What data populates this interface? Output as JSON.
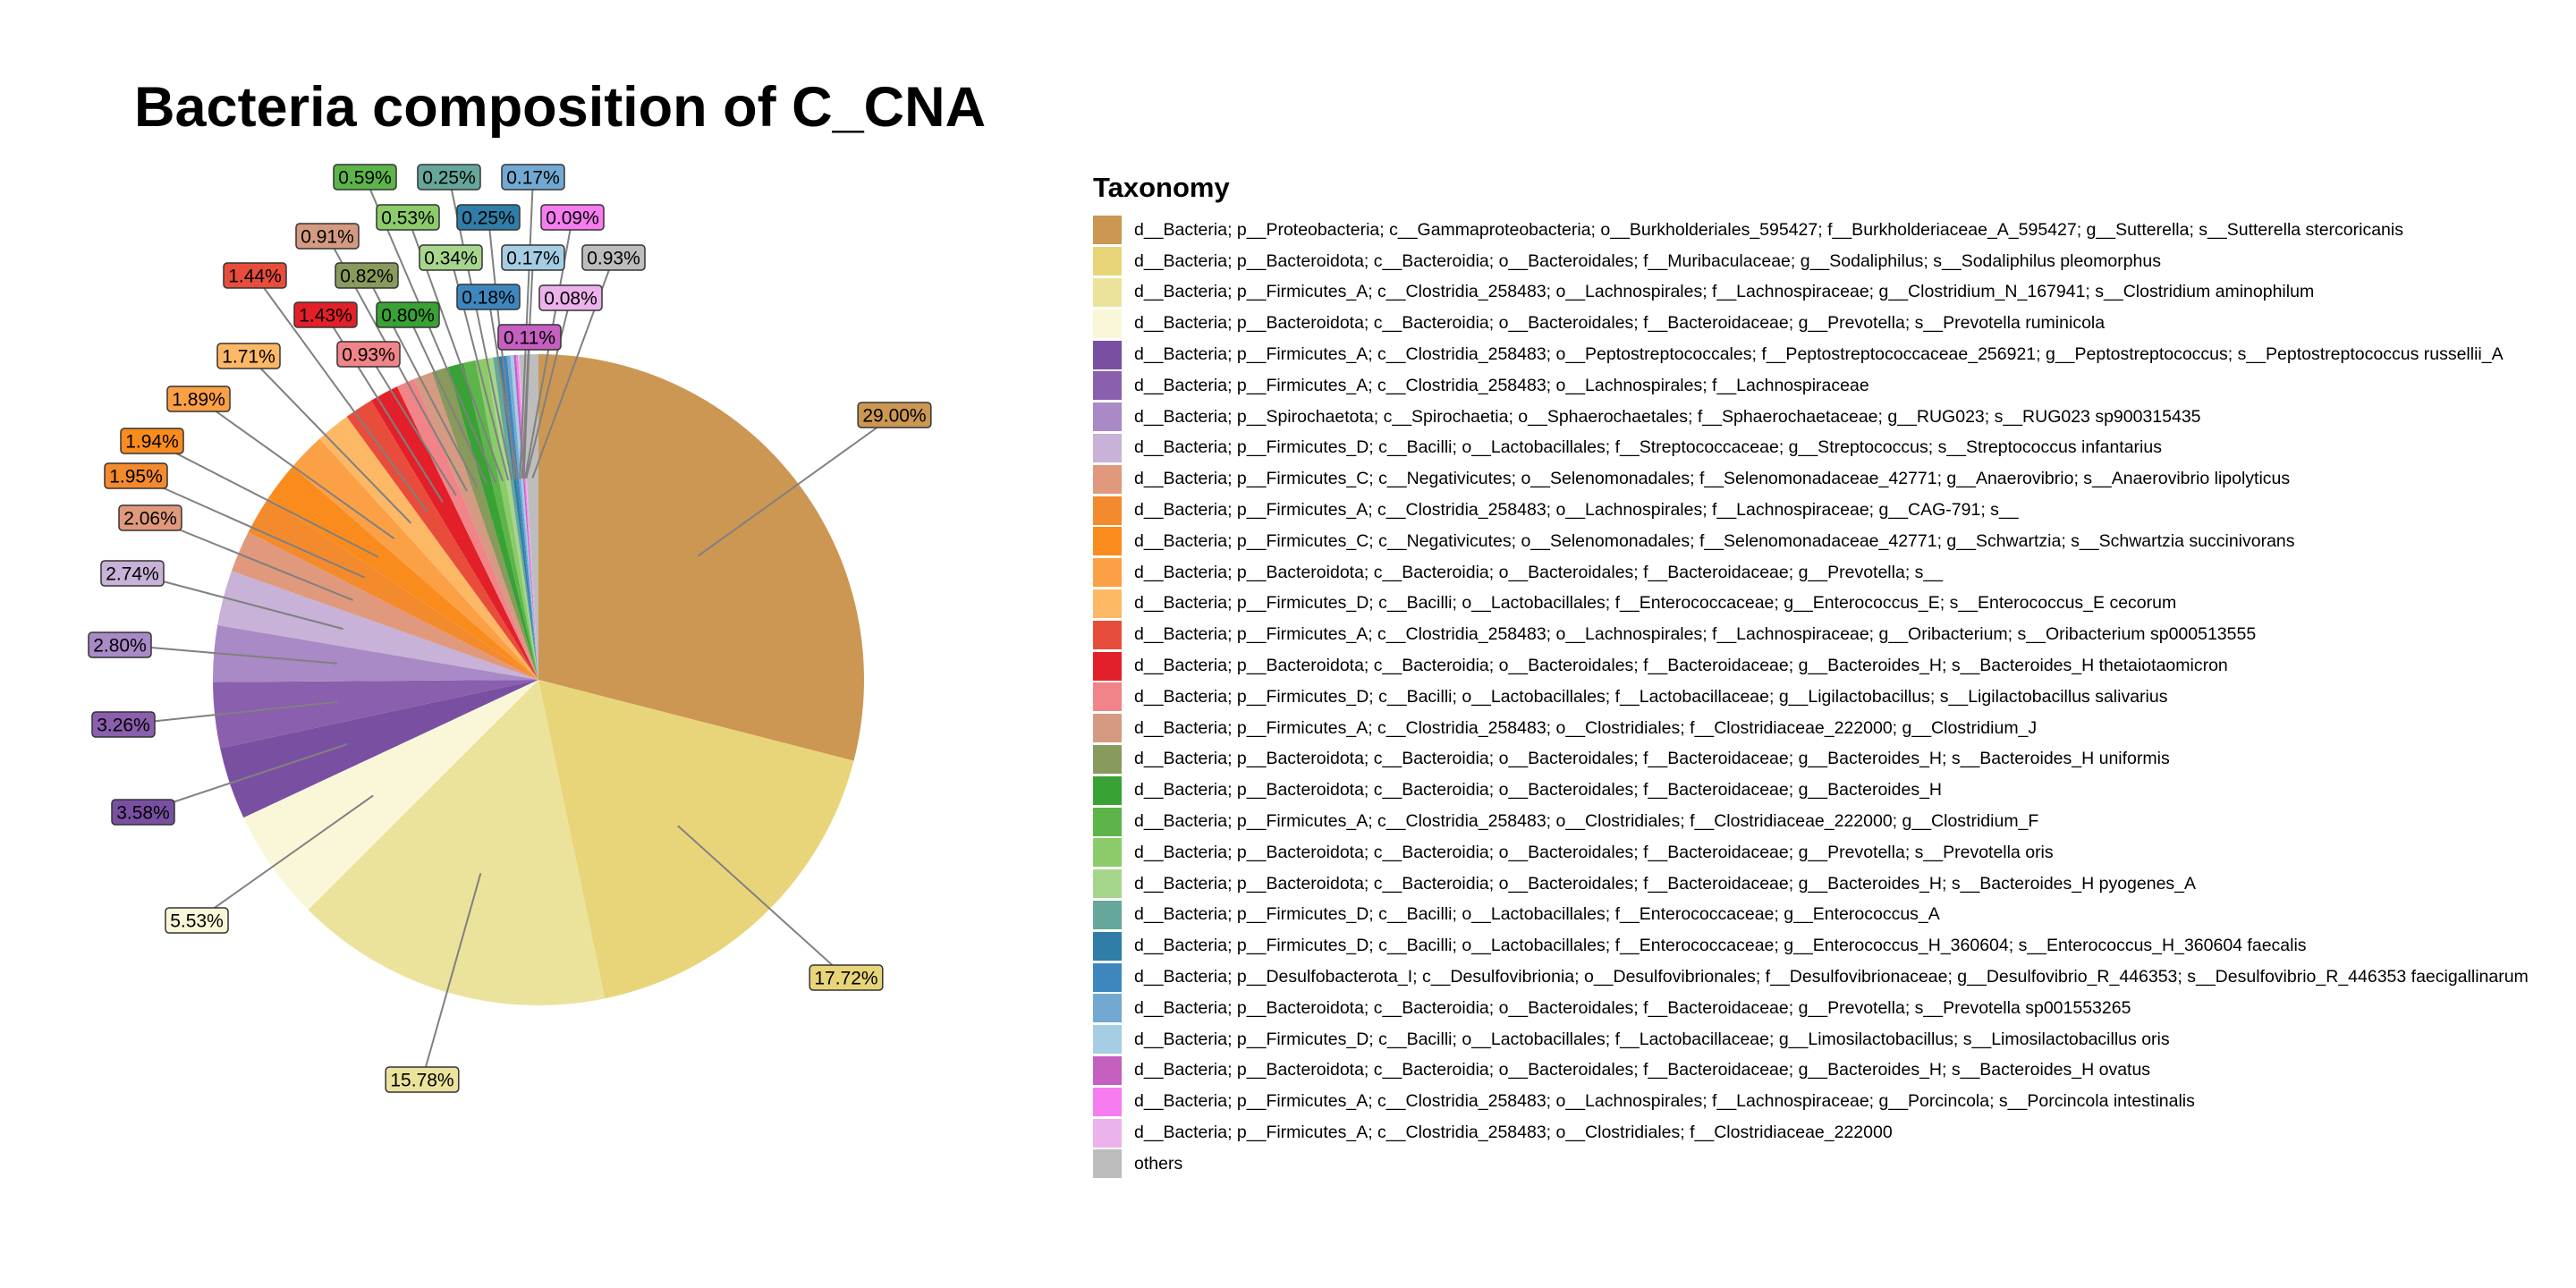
{
  "chart_data": {
    "type": "pie",
    "title": "Bacteria composition of C_CNA",
    "legend_title": "Taxonomy",
    "legend_position": "right",
    "slices": [
      {
        "label": "d__Bacteria; p__Proteobacteria; c__Gammaproteobacteria; o__Burkholderiales_595427; f__Burkholderiaceae_A_595427; g__Sutterella; s__Sutterella stercoricanis",
        "value": 29.0,
        "display": "29.00%",
        "color": "#CC9752"
      },
      {
        "label": "d__Bacteria; p__Bacteroidota; c__Bacteroidia; o__Bacteroidales; f__Muribaculaceae; g__Sodaliphilus; s__Sodaliphilus pleomorphus",
        "value": 17.72,
        "display": "17.72%",
        "color": "#E8D57A"
      },
      {
        "label": "d__Bacteria; p__Firmicutes_A; c__Clostridia_258483; o__Lachnospirales; f__Lachnospiraceae; g__Clostridium_N_167941; s__Clostridium aminophilum",
        "value": 15.78,
        "display": "15.78%",
        "color": "#EBE39C"
      },
      {
        "label": "d__Bacteria; p__Bacteroidota; c__Bacteroidia; o__Bacteroidales; f__Bacteroidaceae; g__Prevotella; s__Prevotella ruminicola",
        "value": 5.53,
        "display": "5.53%",
        "color": "#FAF7D9"
      },
      {
        "label": "d__Bacteria; p__Firmicutes_A; c__Clostridia_258483; o__Peptostreptococcales; f__Peptostreptococcaceae_256921; g__Peptostreptococcus; s__Peptostreptococcus russellii_A",
        "value": 3.58,
        "display": "3.58%",
        "color": "#7950A1"
      },
      {
        "label": "d__Bacteria; p__Firmicutes_A; c__Clostridia_258483; o__Lachnospirales; f__Lachnospiraceae",
        "value": 3.26,
        "display": "3.26%",
        "color": "#8A5FAE"
      },
      {
        "label": "d__Bacteria; p__Spirochaetota; c__Spirochaetia; o__Sphaerochaetales; f__Sphaerochaetaceae; g__RUG023; s__RUG023 sp900315435",
        "value": 2.8,
        "display": "2.80%",
        "color": "#A989C6"
      },
      {
        "label": "d__Bacteria; p__Firmicutes_D; c__Bacilli; o__Lactobacillales; f__Streptococcaceae; g__Streptococcus; s__Streptococcus infantarius",
        "value": 2.74,
        "display": "2.74%",
        "color": "#C8B2D7"
      },
      {
        "label": "d__Bacteria; p__Firmicutes_C; c__Negativicutes; o__Selenomonadales; f__Selenomonadaceae_42771; g__Anaerovibrio; s__Anaerovibrio lipolyticus",
        "value": 2.06,
        "display": "2.06%",
        "color": "#E0997D"
      },
      {
        "label": "d__Bacteria; p__Firmicutes_A; c__Clostridia_258483; o__Lachnospirales; f__Lachnospiraceae; g__CAG-791; s__",
        "value": 1.95,
        "display": "1.95%",
        "color": "#F48A2E"
      },
      {
        "label": "d__Bacteria; p__Firmicutes_C; c__Negativicutes; o__Selenomonadales; f__Selenomonadaceae_42771; g__Schwartzia; s__Schwartzia succinivorans",
        "value": 1.94,
        "display": "1.94%",
        "color": "#FA8C1E"
      },
      {
        "label": "d__Bacteria; p__Bacteroidota; c__Bacteroidia; o__Bacteroidales; f__Bacteroidaceae; g__Prevotella; s__",
        "value": 1.89,
        "display": "1.89%",
        "color": "#FCA045"
      },
      {
        "label": "d__Bacteria; p__Firmicutes_D; c__Bacilli; o__Lactobacillales; f__Enterococcaceae; g__Enterococcus_E; s__Enterococcus_E cecorum",
        "value": 1.71,
        "display": "1.71%",
        "color": "#FDB866"
      },
      {
        "label": "d__Bacteria; p__Firmicutes_A; c__Clostridia_258483; o__Lachnospirales; f__Lachnospiraceae; g__Oribacterium; s__Oribacterium sp000513555",
        "value": 1.44,
        "display": "1.44%",
        "color": "#E84D3C"
      },
      {
        "label": "d__Bacteria; p__Bacteroidota; c__Bacteroidia; o__Bacteroidales; f__Bacteroidaceae; g__Bacteroides_H; s__Bacteroides_H thetaiotaomicron",
        "value": 1.43,
        "display": "1.43%",
        "color": "#E3202A"
      },
      {
        "label": "d__Bacteria; p__Firmicutes_D; c__Bacilli; o__Lactobacillales; f__Lactobacillaceae; g__Ligilactobacillus; s__Ligilactobacillus salivarius",
        "value": 0.93,
        "display": "0.93%",
        "color": "#F08488"
      },
      {
        "label": "d__Bacteria; p__Firmicutes_A; c__Clostridia_258483; o__Clostridiales; f__Clostridiaceae_222000; g__Clostridium_J",
        "value": 0.91,
        "display": "0.91%",
        "color": "#D49A82"
      },
      {
        "label": "d__Bacteria; p__Bacteroidota; c__Bacteroidia; o__Bacteroidales; f__Bacteroidaceae; g__Bacteroides_H; s__Bacteroides_H uniformis",
        "value": 0.82,
        "display": "0.82%",
        "color": "#889A5C"
      },
      {
        "label": "d__Bacteria; p__Bacteroidota; c__Bacteroidia; o__Bacteroidales; f__Bacteroidaceae; g__Bacteroides_H",
        "value": 0.8,
        "display": "0.80%",
        "color": "#38A235"
      },
      {
        "label": "d__Bacteria; p__Firmicutes_A; c__Clostridia_258483; o__Clostridiales; f__Clostridiaceae_222000; g__Clostridium_F",
        "value": 0.59,
        "display": "0.59%",
        "color": "#5DB54A"
      },
      {
        "label": "d__Bacteria; p__Bacteroidota; c__Bacteroidia; o__Bacteroidales; f__Bacteroidaceae; g__Prevotella; s__Prevotella oris",
        "value": 0.53,
        "display": "0.53%",
        "color": "#8CCB6A"
      },
      {
        "label": "d__Bacteria; p__Bacteroidota; c__Bacteroidia; o__Bacteroidales; f__Bacteroidaceae; g__Bacteroides_H; s__Bacteroides_H pyogenes_A",
        "value": 0.34,
        "display": "0.34%",
        "color": "#A6D68C"
      },
      {
        "label": "d__Bacteria; p__Firmicutes_D; c__Bacilli; o__Lactobacillales; f__Enterococcaceae; g__Enterococcus_A",
        "value": 0.25,
        "display": "0.25%",
        "color": "#67A69A"
      },
      {
        "label": "d__Bacteria; p__Firmicutes_D; c__Bacilli; o__Lactobacillales; f__Enterococcaceae; g__Enterococcus_H_360604; s__Enterococcus_H_360604 faecalis",
        "value": 0.25,
        "display": "0.25%",
        "color": "#2F7DA8"
      },
      {
        "label": "d__Bacteria; p__Desulfobacterota_I; c__Desulfovibrionia; o__Desulfovibrionales; f__Desulfovibrionaceae; g__Desulfovibrio_R_446353; s__Desulfovibrio_R_446353 faecigallinarum",
        "value": 0.18,
        "display": "0.18%",
        "color": "#3D87BE"
      },
      {
        "label": "d__Bacteria; p__Bacteroidota; c__Bacteroidia; o__Bacteroidales; f__Bacteroidaceae; g__Prevotella; s__Prevotella sp001553265",
        "value": 0.17,
        "display": "0.17%",
        "color": "#72A9D2"
      },
      {
        "label": "d__Bacteria; p__Firmicutes_D; c__Bacilli; o__Lactobacillales; f__Lactobacillaceae; g__Limosilactobacillus; s__Limosilactobacillus oris",
        "value": 0.17,
        "display": "0.17%",
        "color": "#A5CDE3"
      },
      {
        "label": "d__Bacteria; p__Bacteroidota; c__Bacteroidia; o__Bacteroidales; f__Bacteroidaceae; g__Bacteroides_H; s__Bacteroides_H ovatus",
        "value": 0.11,
        "display": "0.11%",
        "color": "#C55FC0"
      },
      {
        "label": "d__Bacteria; p__Firmicutes_A; c__Clostridia_258483; o__Lachnospirales; f__Lachnospiraceae; g__Porcincola; s__Porcincola intestinalis",
        "value": 0.09,
        "display": "0.09%",
        "color": "#F67CF0"
      },
      {
        "label": "d__Bacteria; p__Firmicutes_A; c__Clostridia_258483; o__Clostridiales; f__Clostridiaceae_222000",
        "value": 0.08,
        "display": "0.08%",
        "color": "#ECB2EC"
      },
      {
        "label": "others",
        "value": 0.93,
        "display": "0.93%",
        "color": "#BDBDBD"
      }
    ]
  }
}
